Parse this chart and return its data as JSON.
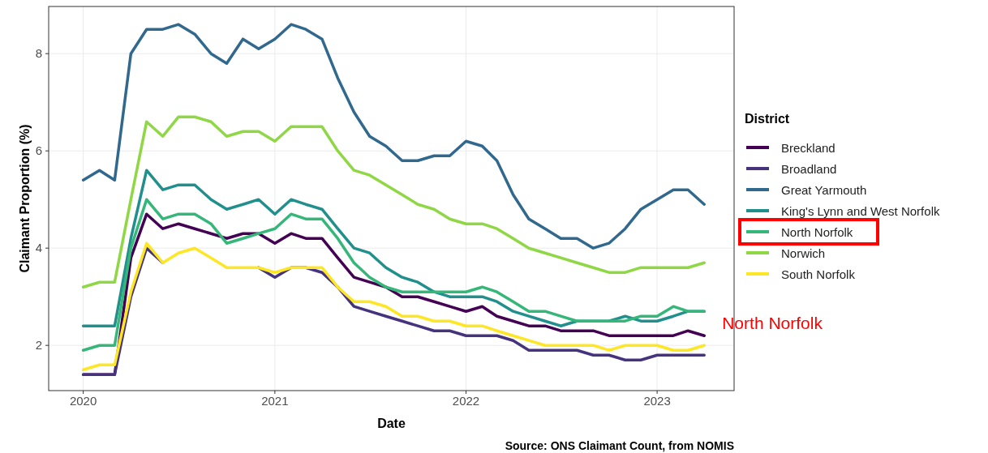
{
  "chart_data": {
    "type": "line",
    "xlabel": "Date",
    "ylabel": "Claimant Proportion (%)",
    "legend_title": "District",
    "legend": "right",
    "grid": true,
    "line_style": "solid",
    "x": [
      "2020-01",
      "2020-02",
      "2020-03",
      "2020-04",
      "2020-05",
      "2020-06",
      "2020-07",
      "2020-08",
      "2020-09",
      "2020-10",
      "2020-11",
      "2020-12",
      "2021-01",
      "2021-02",
      "2021-03",
      "2021-04",
      "2021-05",
      "2021-06",
      "2021-07",
      "2021-08",
      "2021-09",
      "2021-10",
      "2021-11",
      "2021-12",
      "2022-01",
      "2022-02",
      "2022-03",
      "2022-04",
      "2022-05",
      "2022-06",
      "2022-07",
      "2022-08",
      "2022-09",
      "2022-10",
      "2022-11",
      "2022-12",
      "2023-01",
      "2023-02",
      "2023-03",
      "2023-04"
    ],
    "xlim": [
      "2019-10-27",
      "2023-05-28"
    ],
    "xticks": [
      {
        "value": "2020-01-01",
        "label": "2020"
      },
      {
        "value": "2021-01-01",
        "label": "2021"
      },
      {
        "value": "2022-01-01",
        "label": "2022"
      },
      {
        "value": "2023-01-01",
        "label": "2023"
      }
    ],
    "ylim": [
      1.07,
      8.97
    ],
    "yticks": [
      2,
      4,
      6,
      8
    ],
    "series": [
      {
        "name": "Breckland",
        "color": "#440154",
        "values": [
          1.4,
          1.4,
          1.4,
          3.8,
          4.7,
          4.4,
          4.5,
          4.4,
          4.3,
          4.2,
          4.3,
          4.3,
          4.1,
          4.3,
          4.2,
          4.2,
          3.8,
          3.4,
          3.3,
          3.2,
          3.0,
          3.0,
          2.9,
          2.8,
          2.7,
          2.8,
          2.6,
          2.5,
          2.4,
          2.4,
          2.3,
          2.3,
          2.3,
          2.2,
          2.2,
          2.2,
          2.2,
          2.2,
          2.3,
          2.2
        ]
      },
      {
        "name": "Broadland",
        "color": "#46337e",
        "values": [
          1.4,
          1.4,
          1.4,
          3.0,
          4.0,
          3.7,
          null,
          null,
          null,
          null,
          null,
          3.6,
          3.4,
          3.6,
          3.6,
          3.5,
          3.2,
          2.8,
          2.7,
          2.6,
          2.5,
          2.4,
          2.3,
          2.3,
          2.2,
          2.2,
          2.2,
          2.1,
          1.9,
          1.9,
          1.9,
          1.9,
          1.8,
          1.8,
          1.7,
          1.7,
          1.8,
          1.8,
          1.8,
          1.8
        ]
      },
      {
        "name": "Great Yarmouth",
        "color": "#31688e",
        "values": [
          5.4,
          5.6,
          5.4,
          8.0,
          8.5,
          8.5,
          8.6,
          8.4,
          8.0,
          7.8,
          8.3,
          8.1,
          8.3,
          8.6,
          8.5,
          8.3,
          7.5,
          6.8,
          6.3,
          6.1,
          5.8,
          5.8,
          5.9,
          5.9,
          6.2,
          6.1,
          5.8,
          5.1,
          4.6,
          4.4,
          4.2,
          4.2,
          4.0,
          4.1,
          4.4,
          4.8,
          5.0,
          5.2,
          5.2,
          4.9
        ]
      },
      {
        "name": "King's Lynn and West Norfolk",
        "color": "#21908d",
        "values": [
          2.4,
          2.4,
          2.4,
          4.2,
          5.6,
          5.2,
          5.3,
          5.3,
          5.0,
          4.8,
          4.9,
          5.0,
          4.7,
          5.0,
          4.9,
          4.8,
          4.4,
          4.0,
          3.9,
          3.6,
          3.4,
          3.3,
          3.1,
          3.0,
          3.0,
          3.0,
          2.9,
          2.7,
          2.6,
          2.5,
          2.4,
          2.5,
          2.5,
          2.5,
          2.6,
          2.5,
          2.5,
          2.6,
          2.7,
          2.7
        ]
      },
      {
        "name": "North Norfolk",
        "color": "#35b779",
        "values": [
          1.9,
          2.0,
          2.0,
          4.0,
          5.0,
          4.6,
          4.7,
          4.7,
          4.5,
          4.1,
          4.2,
          4.3,
          4.4,
          4.7,
          4.6,
          4.6,
          4.2,
          3.7,
          3.4,
          3.2,
          3.1,
          3.1,
          3.1,
          3.1,
          3.1,
          3.2,
          3.1,
          2.9,
          2.7,
          2.7,
          2.6,
          2.5,
          2.5,
          2.5,
          2.5,
          2.6,
          2.6,
          2.8,
          2.7,
          2.7
        ]
      },
      {
        "name": "Norwich",
        "color": "#8fd744",
        "values": [
          3.2,
          3.3,
          3.3,
          5.0,
          6.6,
          6.3,
          6.7,
          6.7,
          6.6,
          6.3,
          6.4,
          6.4,
          6.2,
          6.5,
          6.5,
          6.5,
          6.0,
          5.6,
          5.5,
          5.3,
          5.1,
          4.9,
          4.8,
          4.6,
          4.5,
          4.5,
          4.4,
          4.2,
          4.0,
          3.9,
          3.8,
          3.7,
          3.6,
          3.5,
          3.5,
          3.6,
          3.6,
          3.6,
          3.6,
          3.7
        ]
      },
      {
        "name": "South Norfolk",
        "color": "#fde725",
        "values": [
          1.5,
          1.6,
          1.6,
          3.1,
          4.1,
          3.7,
          3.9,
          4.0,
          3.8,
          3.6,
          3.6,
          3.6,
          3.5,
          3.6,
          3.6,
          3.6,
          3.2,
          2.9,
          2.9,
          2.8,
          2.6,
          2.6,
          2.5,
          2.5,
          2.4,
          2.4,
          2.3,
          2.2,
          2.1,
          2.0,
          2.0,
          2.0,
          2.0,
          1.9,
          2.0,
          2.0,
          2.0,
          1.9,
          1.9,
          2.0
        ]
      }
    ],
    "annotations": [
      {
        "text": "North Norfolk",
        "x": "2023-04",
        "y": 2.7
      },
      "Source: ONS Claimant Count, from NOMIS"
    ]
  }
}
